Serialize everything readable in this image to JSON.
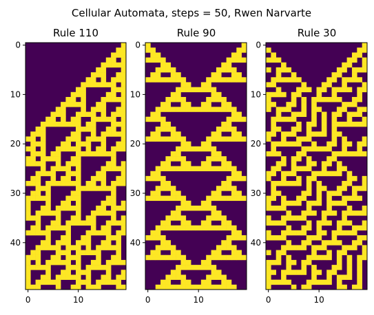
{
  "figure_title": "Cellular Automata, steps = 50, Rwen Narvarte",
  "colors": {
    "dead": "#440154",
    "alive": "#fde725",
    "axis": "#000000"
  },
  "chart_data": [
    {
      "type": "heatmap",
      "title": "Rule 110",
      "rule": 110,
      "steps": 50,
      "width": 20,
      "initial": "single cell at right edge",
      "x_ticks": [
        0,
        10
      ],
      "y_ticks": [
        0,
        10,
        20,
        30,
        40
      ],
      "colormap": "viridis"
    },
    {
      "type": "heatmap",
      "title": "Rule 90",
      "rule": 90,
      "steps": 50,
      "width": 20,
      "initial": "single cell at both edges",
      "x_ticks": [
        0,
        10
      ],
      "y_ticks": [
        0,
        10,
        20,
        30,
        40
      ],
      "colormap": "viridis"
    },
    {
      "type": "heatmap",
      "title": "Rule 30",
      "rule": 30,
      "steps": 50,
      "width": 20,
      "initial": "single cell at right edge",
      "x_ticks": [
        0,
        10
      ],
      "y_ticks": [
        0,
        10,
        20,
        30,
        40
      ],
      "colormap": "viridis"
    }
  ]
}
